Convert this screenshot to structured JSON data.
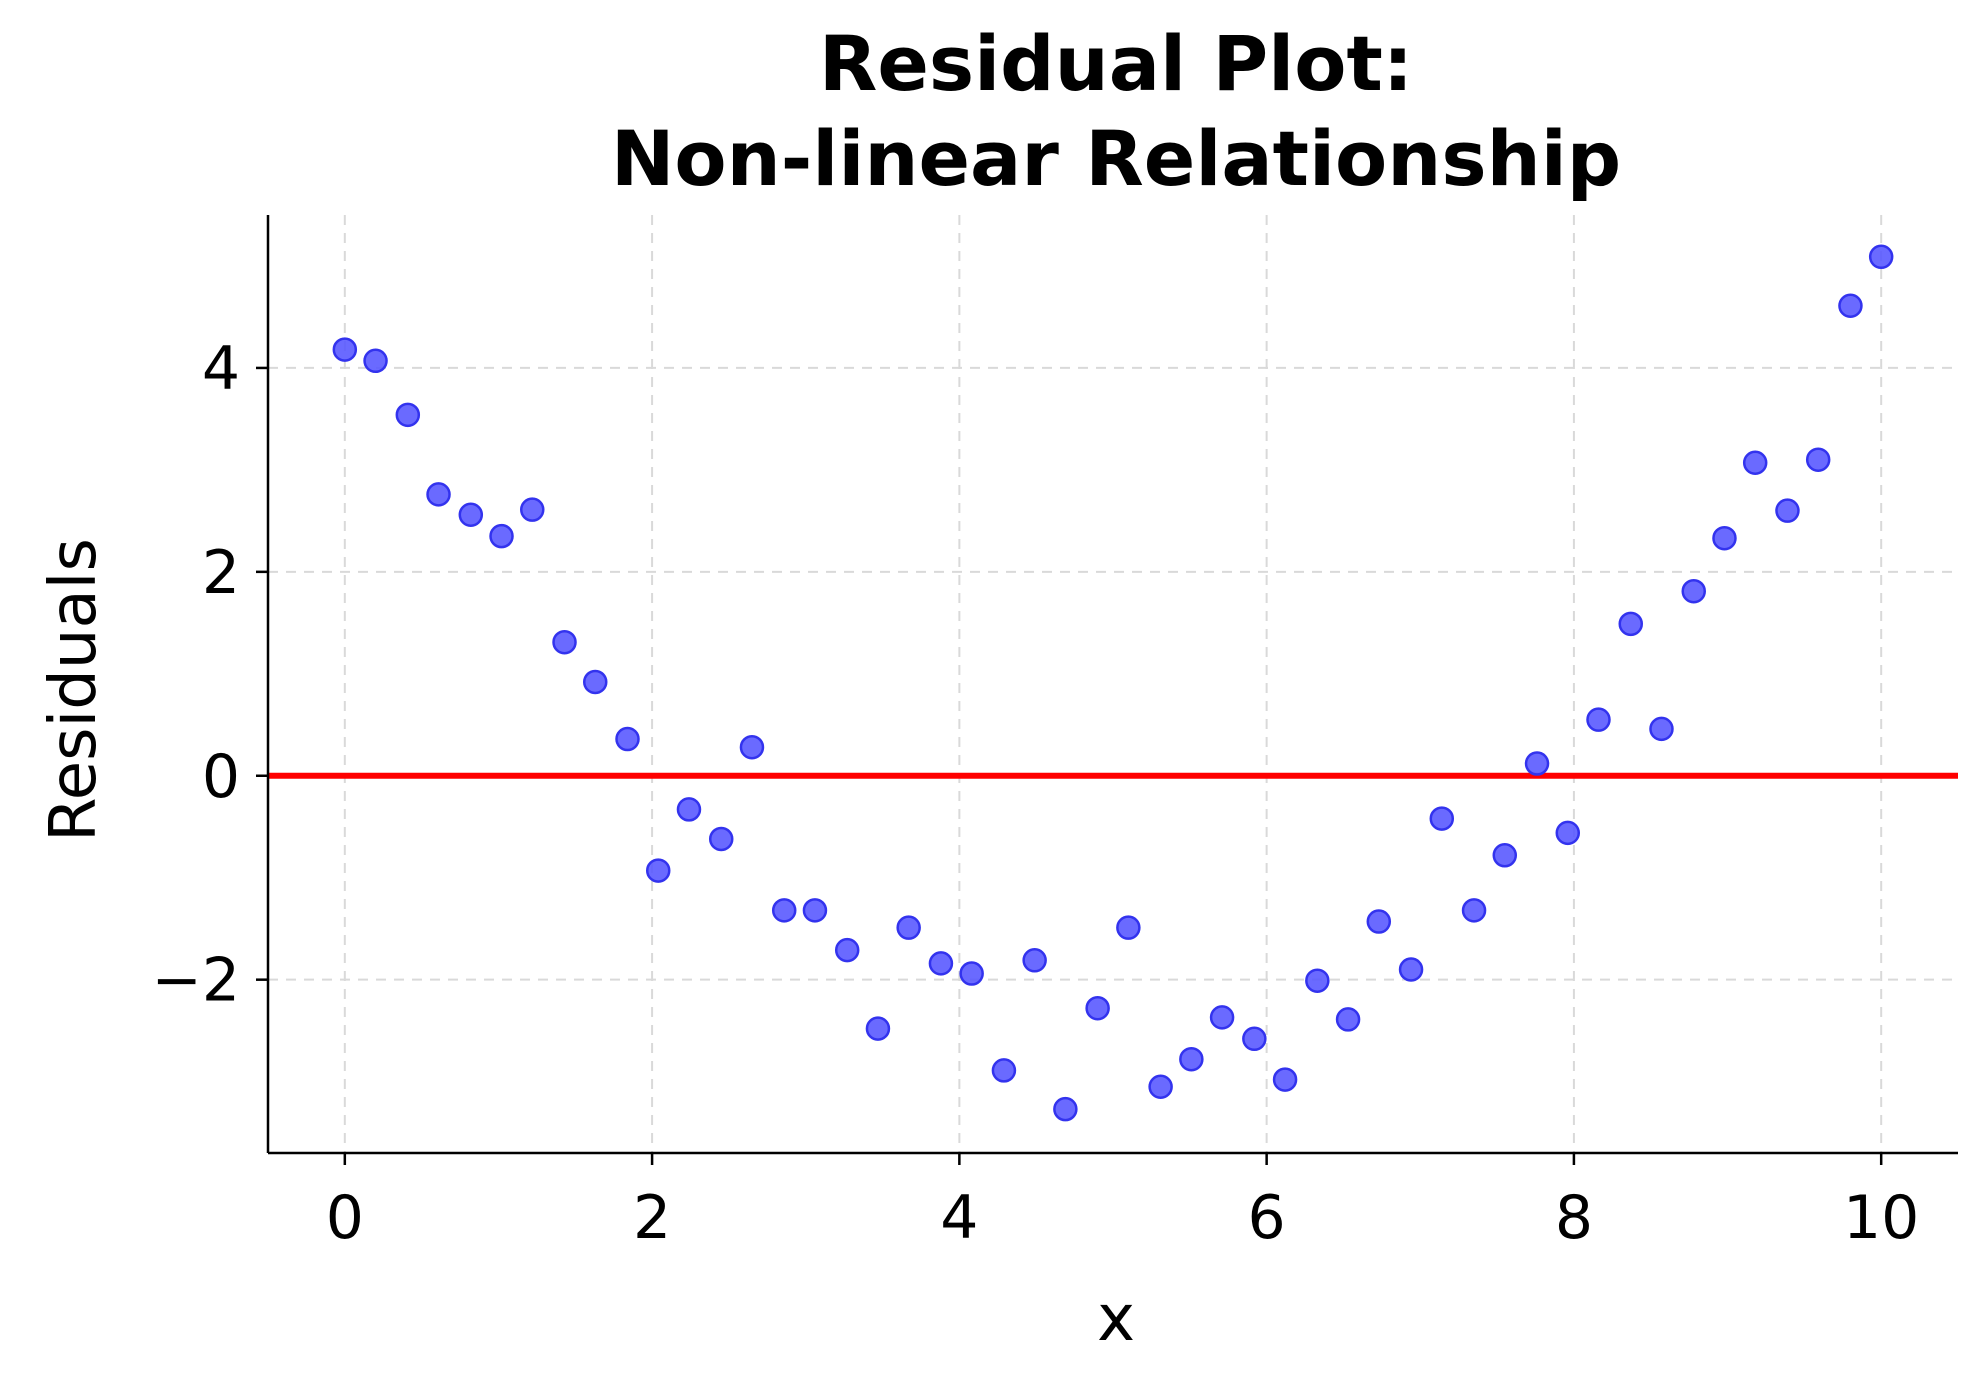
{
  "chart_data": {
    "type": "scatter",
    "title": [
      "Residual Plot:",
      "Non-linear Relationship"
    ],
    "xlabel": "x",
    "ylabel": "Residuals",
    "xlim": [
      -0.5,
      10.5
    ],
    "ylim": [
      -3.7,
      5.5
    ],
    "xticks": [
      0,
      2,
      4,
      6,
      8,
      10
    ],
    "xtick_labels": [
      "0",
      "2",
      "4",
      "6",
      "8",
      "10"
    ],
    "yticks": [
      -2,
      0,
      2,
      4
    ],
    "ytick_labels": [
      "−2",
      "0",
      "2",
      "4"
    ],
    "grid": true,
    "reference_line": {
      "y": 0,
      "color": "#ff0000"
    },
    "marker_color": "#5555ff",
    "marker_edge_color": "#3333ee",
    "points": [
      {
        "x": 0.0,
        "y": 4.18
      },
      {
        "x": 0.2,
        "y": 4.07
      },
      {
        "x": 0.41,
        "y": 3.54
      },
      {
        "x": 0.61,
        "y": 2.76
      },
      {
        "x": 0.82,
        "y": 2.56
      },
      {
        "x": 1.02,
        "y": 2.35
      },
      {
        "x": 1.22,
        "y": 2.61
      },
      {
        "x": 1.43,
        "y": 1.31
      },
      {
        "x": 1.63,
        "y": 0.92
      },
      {
        "x": 1.84,
        "y": 0.36
      },
      {
        "x": 2.04,
        "y": -0.93
      },
      {
        "x": 2.24,
        "y": -0.33
      },
      {
        "x": 2.45,
        "y": -0.62
      },
      {
        "x": 2.65,
        "y": 0.28
      },
      {
        "x": 2.86,
        "y": -1.32
      },
      {
        "x": 3.06,
        "y": -1.32
      },
      {
        "x": 3.27,
        "y": -1.71
      },
      {
        "x": 3.47,
        "y": -2.48
      },
      {
        "x": 3.67,
        "y": -1.49
      },
      {
        "x": 3.88,
        "y": -1.84
      },
      {
        "x": 4.08,
        "y": -1.94
      },
      {
        "x": 4.29,
        "y": -2.89
      },
      {
        "x": 4.49,
        "y": -1.81
      },
      {
        "x": 4.69,
        "y": -3.27
      },
      {
        "x": 4.9,
        "y": -2.28
      },
      {
        "x": 5.1,
        "y": -1.49
      },
      {
        "x": 5.31,
        "y": -3.05
      },
      {
        "x": 5.51,
        "y": -2.78
      },
      {
        "x": 5.71,
        "y": -2.37
      },
      {
        "x": 5.92,
        "y": -2.58
      },
      {
        "x": 6.12,
        "y": -2.98
      },
      {
        "x": 6.33,
        "y": -2.01
      },
      {
        "x": 6.53,
        "y": -2.39
      },
      {
        "x": 6.73,
        "y": -1.43
      },
      {
        "x": 6.94,
        "y": -1.9
      },
      {
        "x": 7.14,
        "y": -0.42
      },
      {
        "x": 7.35,
        "y": -1.32
      },
      {
        "x": 7.55,
        "y": -0.78
      },
      {
        "x": 7.76,
        "y": 0.12
      },
      {
        "x": 7.96,
        "y": -0.56
      },
      {
        "x": 8.16,
        "y": 0.55
      },
      {
        "x": 8.37,
        "y": 1.49
      },
      {
        "x": 8.57,
        "y": 0.46
      },
      {
        "x": 8.78,
        "y": 1.81
      },
      {
        "x": 8.98,
        "y": 2.33
      },
      {
        "x": 9.18,
        "y": 3.07
      },
      {
        "x": 9.39,
        "y": 2.6
      },
      {
        "x": 9.59,
        "y": 3.1
      },
      {
        "x": 9.8,
        "y": 4.61
      },
      {
        "x": 10.0,
        "y": 5.09
      }
    ]
  }
}
